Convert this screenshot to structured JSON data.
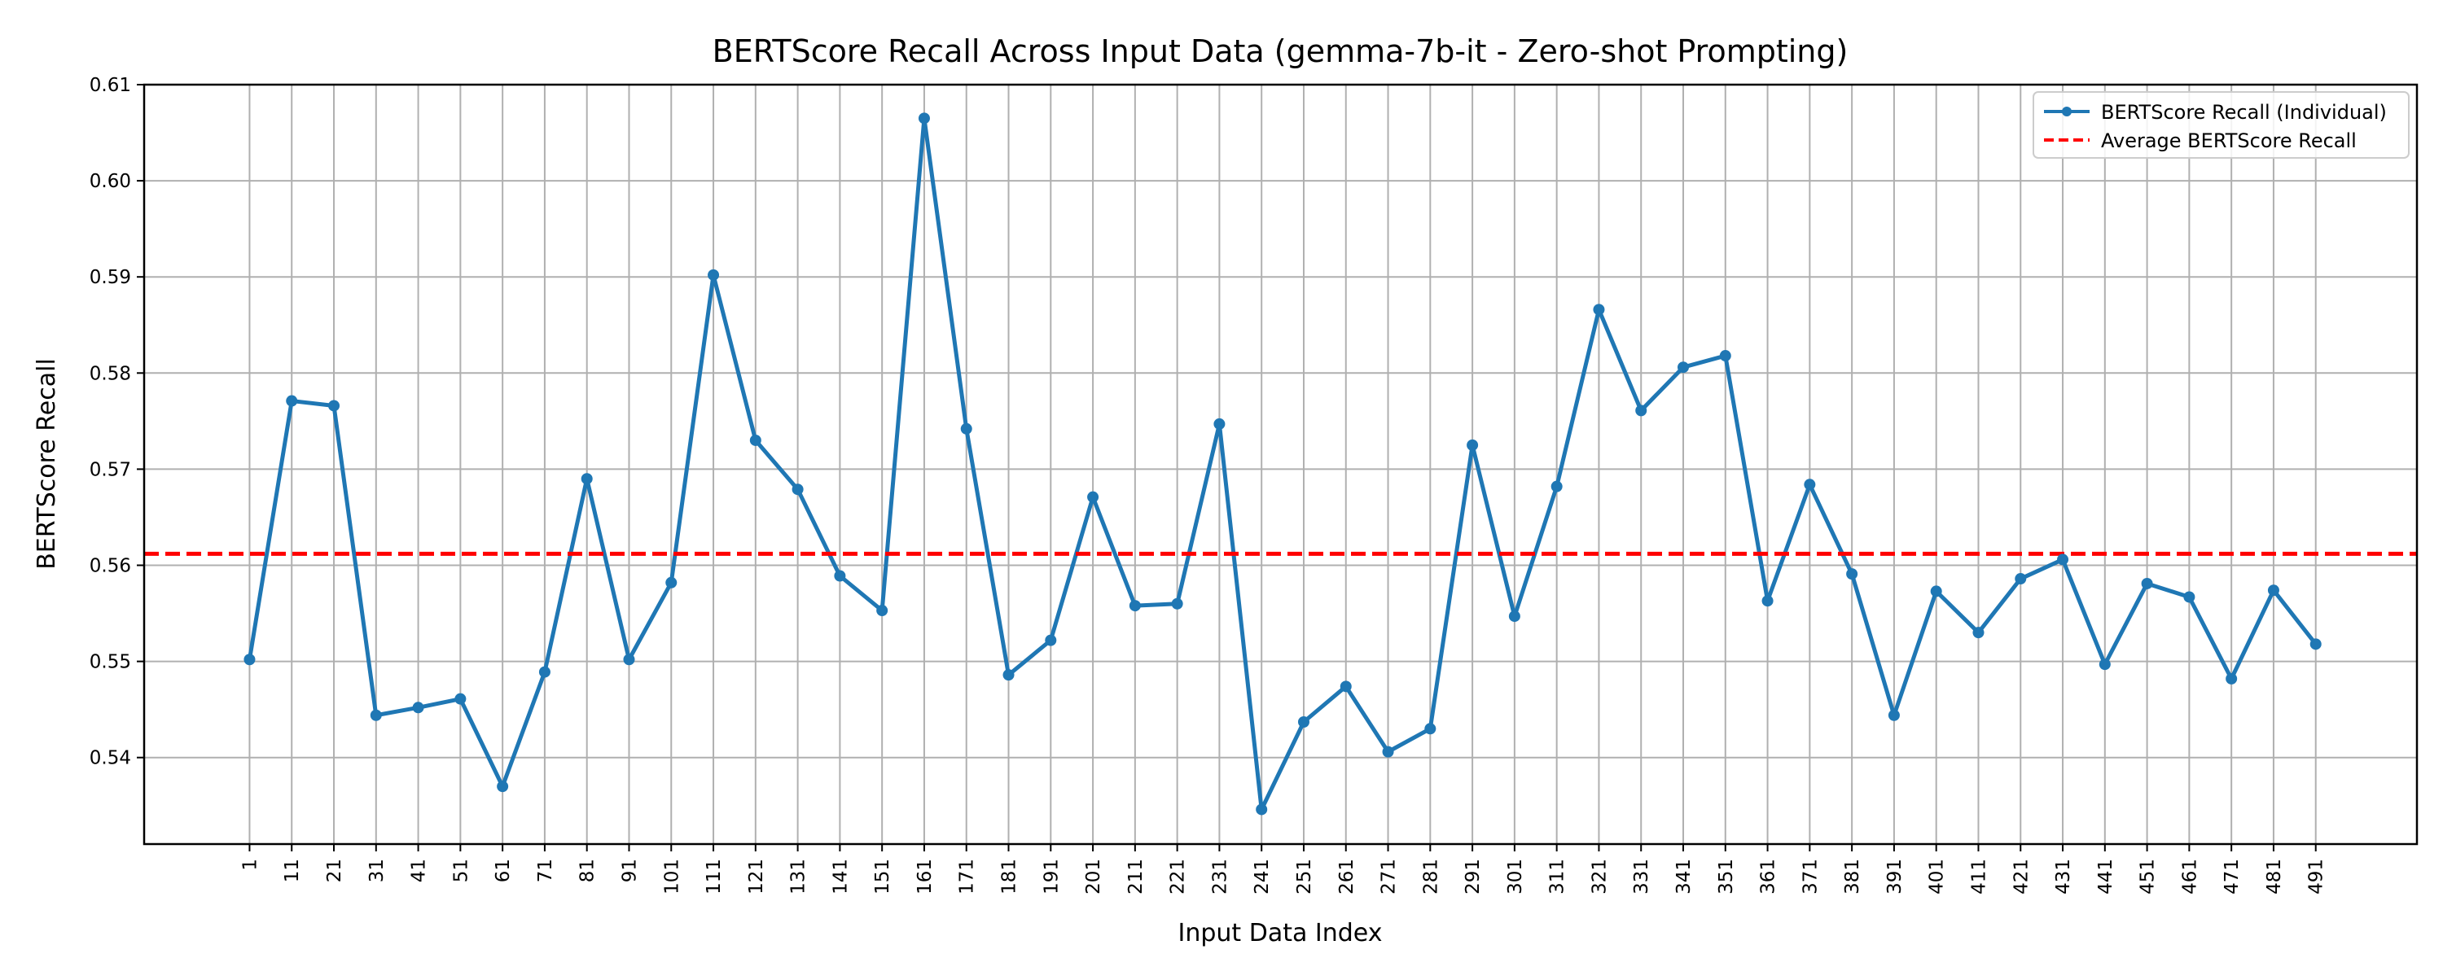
{
  "chart_data": {
    "type": "line",
    "title": "BERTScore Recall Across Input Data (gemma-7b-it - Zero-shot Prompting)",
    "xlabel": "Input Data Index",
    "ylabel": "BERTScore Recall",
    "x": [
      1,
      11,
      21,
      31,
      41,
      51,
      61,
      71,
      81,
      91,
      101,
      111,
      121,
      131,
      141,
      151,
      161,
      171,
      181,
      191,
      201,
      211,
      221,
      231,
      241,
      251,
      261,
      271,
      281,
      291,
      301,
      311,
      321,
      331,
      341,
      351,
      361,
      371,
      381,
      391,
      401,
      411,
      421,
      431,
      441,
      451,
      461,
      471,
      481,
      491
    ],
    "xlim": [
      -24,
      515
    ],
    "ylim": [
      0.531,
      0.61
    ],
    "yticks": [
      0.54,
      0.55,
      0.56,
      0.57,
      0.58,
      0.59,
      0.6,
      0.61
    ],
    "grid": true,
    "legend_position": "upper right",
    "series": [
      {
        "name": "BERTScore Recall (Individual)",
        "color": "#1f77b4",
        "style": "solid-marker",
        "values": [
          0.5502,
          0.5771,
          0.5766,
          0.5444,
          0.5452,
          0.5461,
          0.537,
          0.5489,
          0.569,
          0.5502,
          0.5582,
          0.5902,
          0.573,
          0.5679,
          0.5589,
          0.5553,
          0.6065,
          0.5742,
          0.5486,
          0.5522,
          0.5671,
          0.5558,
          0.556,
          0.5747,
          0.5346,
          0.5437,
          0.5474,
          0.5406,
          0.543,
          0.5725,
          0.5547,
          0.5682,
          0.5866,
          0.5761,
          0.5806,
          0.5818,
          0.5563,
          0.5684,
          0.5591,
          0.5444,
          0.5573,
          0.553,
          0.5586,
          0.5606,
          0.5497,
          0.5581,
          0.5567,
          0.5482,
          0.5574,
          0.5518
        ]
      },
      {
        "name": "Average BERTScore Recall",
        "color": "#ff0000",
        "style": "dashed",
        "constant": 0.5612
      }
    ]
  }
}
